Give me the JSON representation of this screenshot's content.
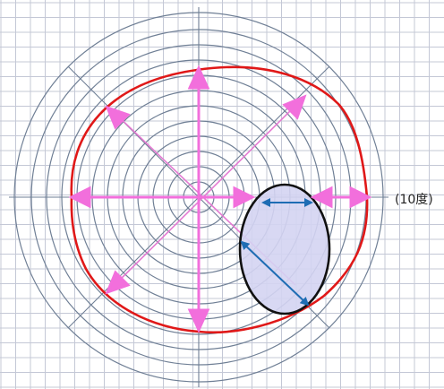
{
  "figure": {
    "label": "(10度)",
    "colors": {
      "background": "#ffffff",
      "grid": "#c4c8d6",
      "rings": "#6f7f95",
      "contour": "#e01818",
      "arrows": "#f06ad6",
      "diagonal_lines": "#e47bd2",
      "ellipse_fill": "#d4d4f2",
      "ellipse_stroke": "#111111",
      "ellipse_arrows": "#1e6db4"
    },
    "icons": [
      "arrow-up-icon",
      "arrow-down-icon",
      "arrow-left-icon",
      "arrow-right-icon",
      "double-arrow-icon"
    ]
  }
}
